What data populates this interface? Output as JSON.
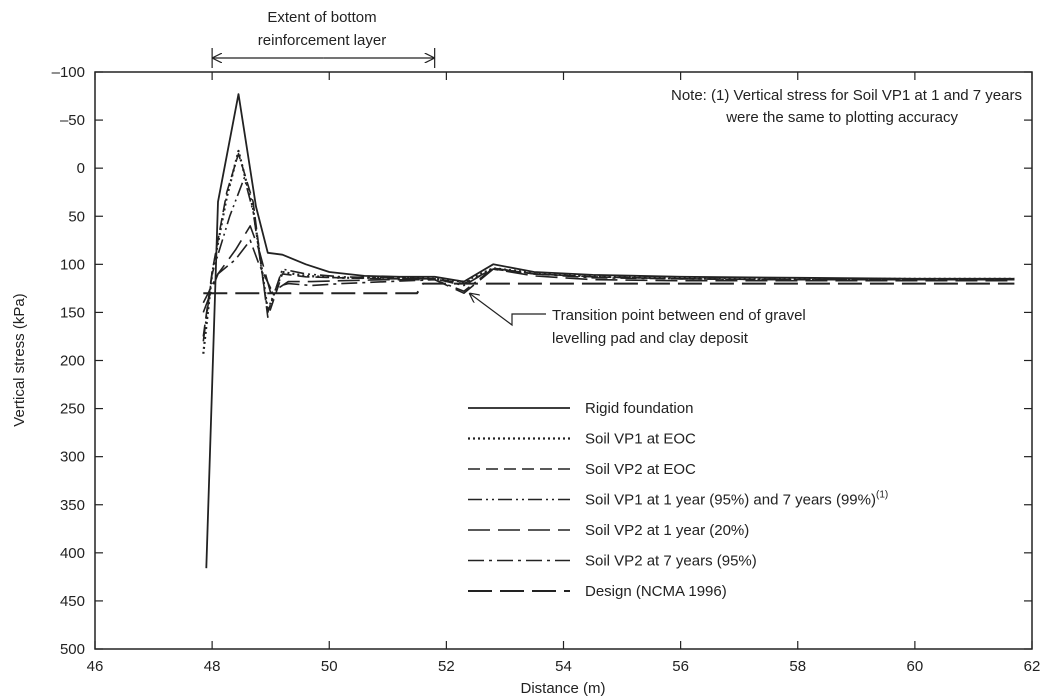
{
  "chart_data": {
    "type": "line",
    "xlabel": "Distance (m)",
    "ylabel": "Vertical stress (kPa)",
    "xlim": [
      46,
      62
    ],
    "ylim": [
      500,
      -100
    ],
    "y_inverted": true,
    "x_ticks": [
      46,
      48,
      50,
      52,
      54,
      56,
      58,
      60,
      62
    ],
    "x_tick_labels": [
      "46",
      "48",
      "50",
      "52",
      "54",
      "56",
      "58",
      "60",
      "62"
    ],
    "y_ticks": [
      -100,
      -50,
      0,
      50,
      100,
      150,
      200,
      250,
      300,
      350,
      400,
      450,
      500
    ],
    "y_tick_labels": [
      "–100",
      "–50",
      "0",
      "50",
      "100",
      "150",
      "200",
      "250",
      "300",
      "350",
      "400",
      "450",
      "500"
    ],
    "grid": false,
    "legend_position": "lower-center",
    "series": [
      {
        "name": "Rigid foundation",
        "style": "solid",
        "x": [
          47.9,
          48.1,
          48.45,
          48.75,
          48.95,
          49.2,
          49.6,
          50.0,
          50.6,
          51.2,
          51.8,
          52.3,
          52.8,
          53.5,
          54.5,
          56,
          58,
          60,
          61.7
        ],
        "y": [
          416,
          35,
          -77,
          40,
          88,
          90,
          100,
          108,
          112,
          113,
          113,
          118,
          100,
          108,
          111,
          113,
          114,
          115,
          115
        ]
      },
      {
        "name": "Soil VP1 at EOC",
        "style": "dotted",
        "x": [
          47.85,
          48.0,
          48.25,
          48.45,
          48.7,
          48.95,
          49.2,
          49.6,
          50.2,
          51,
          51.8,
          52.3,
          52.8,
          53.5,
          54.5,
          56,
          58,
          60,
          61.7
        ],
        "y": [
          193,
          110,
          30,
          -18,
          42,
          148,
          108,
          112,
          114,
          114,
          115,
          118,
          104,
          109,
          112,
          114,
          115,
          115,
          115
        ]
      },
      {
        "name": "Soil VP2 at EOC",
        "style": "dashed",
        "x": [
          47.85,
          48.0,
          48.25,
          48.45,
          48.7,
          48.95,
          49.2,
          49.6,
          50.2,
          51,
          51.8,
          52.3,
          52.8,
          53.5,
          54.5,
          56,
          58,
          60,
          61.7
        ],
        "y": [
          175,
          108,
          25,
          -15,
          35,
          155,
          110,
          113,
          114,
          115,
          115,
          120,
          105,
          110,
          113,
          115,
          116,
          116,
          116
        ]
      },
      {
        "name": "Soil VP1 at 1 year (95%) and 7 years (99%)",
        "superscript": "(1)",
        "style": "dash-dot-dot",
        "x": [
          47.85,
          48.0,
          48.3,
          48.55,
          48.7,
          48.95,
          49.2,
          49.6,
          50.2,
          51,
          51.8,
          52.3,
          52.8,
          53.5,
          54.5,
          56,
          58,
          60,
          61.7
        ],
        "y": [
          180,
          110,
          50,
          10,
          45,
          150,
          105,
          110,
          113,
          114,
          115,
          122,
          104,
          110,
          113,
          115,
          116,
          116,
          116
        ]
      },
      {
        "name": "Soil VP2 at 1 year (20%)",
        "style": "long-dash",
        "x": [
          47.85,
          48.1,
          48.4,
          48.65,
          48.8,
          49.0,
          49.3,
          49.7,
          50.2,
          51,
          51.8,
          52.3,
          52.8,
          53.5,
          54.5,
          56,
          58,
          60,
          61.7
        ],
        "y": [
          150,
          110,
          85,
          60,
          85,
          130,
          118,
          118,
          117,
          116,
          116,
          130,
          105,
          112,
          116,
          117,
          117,
          117,
          117
        ]
      },
      {
        "name": "Soil VP2 at 7 years (95%)",
        "style": "dash-dot",
        "x": [
          47.85,
          48.1,
          48.4,
          48.65,
          48.8,
          49.0,
          49.3,
          49.7,
          50.2,
          51,
          51.8,
          52.3,
          52.8,
          53.5,
          54.5,
          56,
          58,
          60,
          61.7
        ],
        "y": [
          140,
          110,
          95,
          75,
          100,
          125,
          120,
          122,
          120,
          118,
          116,
          128,
          104,
          110,
          114,
          115,
          116,
          116,
          116
        ]
      },
      {
        "name": "Design (NCMA 1996)",
        "style": "long-dash-heavy",
        "x": [
          47.85,
          51.5,
          51.6,
          52.3,
          61.7
        ],
        "y": [
          130,
          130,
          120,
          120,
          120
        ]
      }
    ],
    "annotations": {
      "top_bracket_line1": "Extent of bottom",
      "top_bracket_line2": "reinforcement layer",
      "bracket_x_range": [
        48.0,
        51.8
      ],
      "note_line1": "Note: (1) Vertical stress for Soil VP1 at 1 and 7 years",
      "note_line2": "were the same to plotting accuracy",
      "transition_line1": "Transition point between end of gravel",
      "transition_line2": "levelling pad and clay deposit",
      "transition_point": [
        52.3,
        120
      ]
    }
  }
}
